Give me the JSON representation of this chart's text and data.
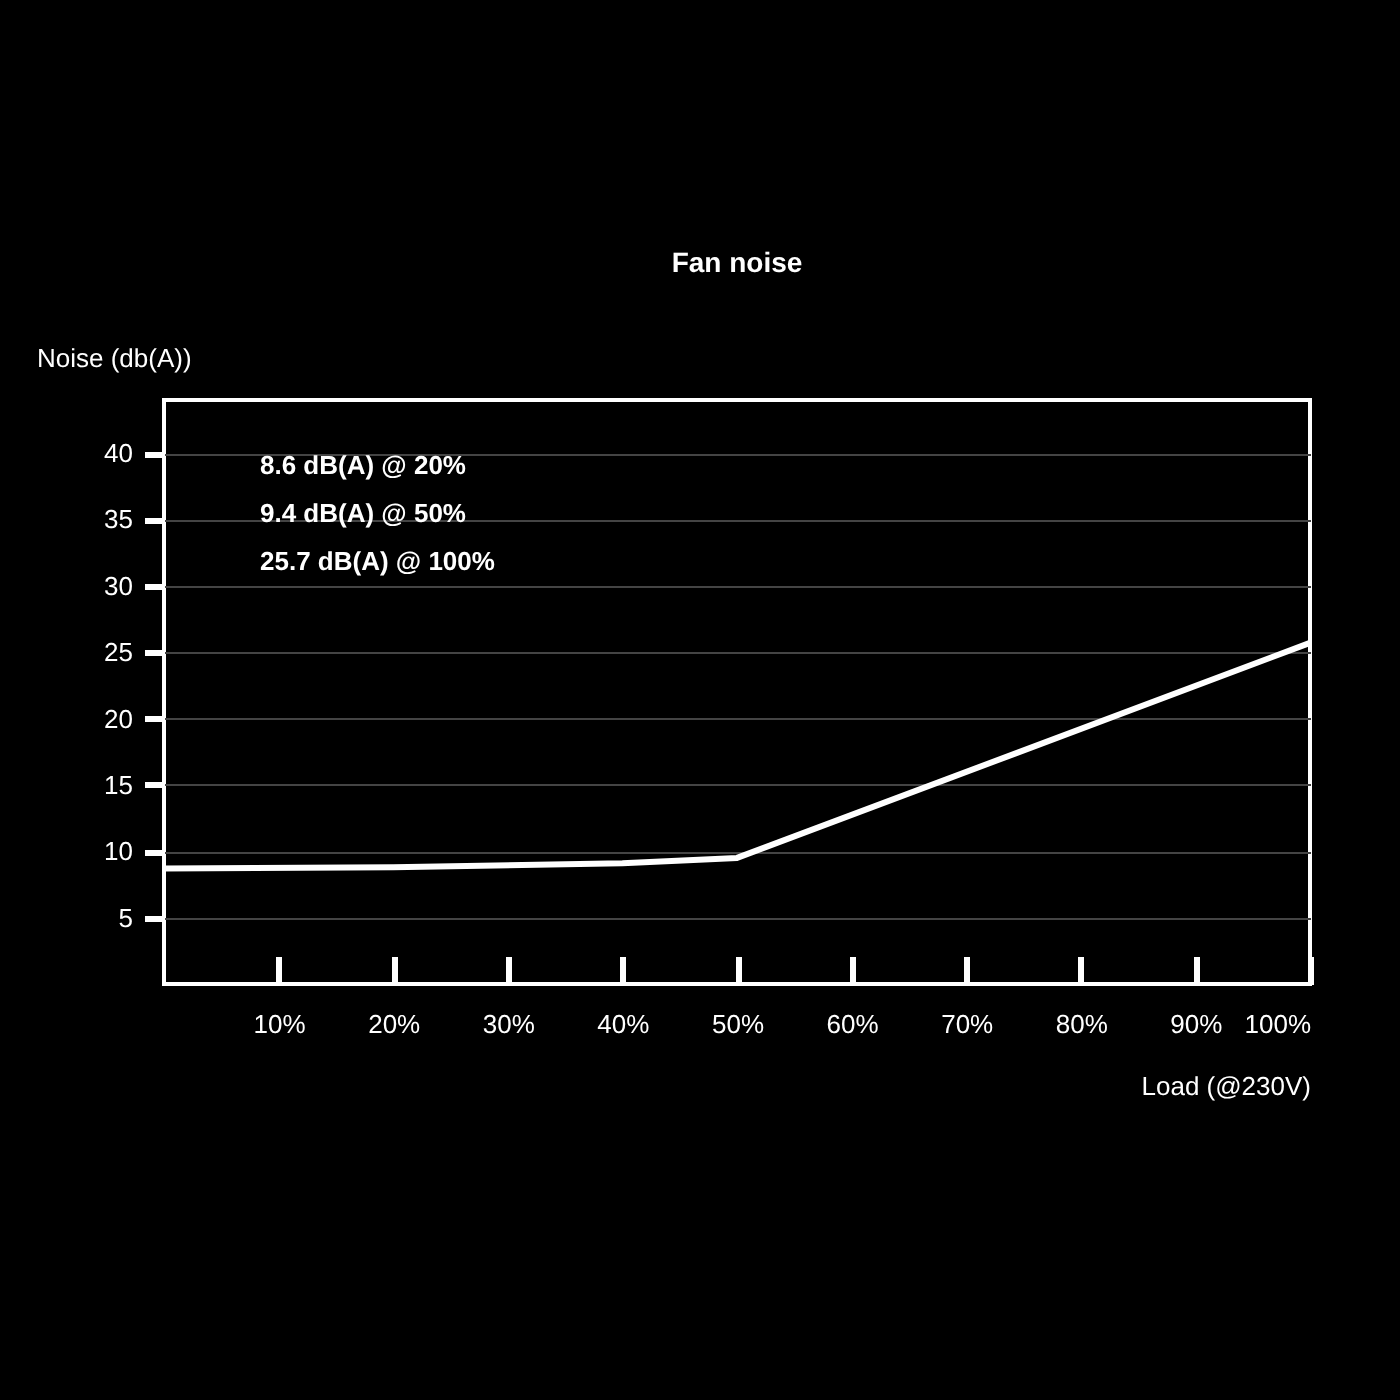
{
  "chart_data": {
    "type": "line",
    "title": "Fan noise",
    "xlabel": "Load (@230V)",
    "ylabel": "Noise (db(A))",
    "x": [
      0,
      20,
      40,
      50,
      100
    ],
    "series": [
      {
        "color": "#ffffff",
        "values": [
          8.7,
          8.8,
          9.1,
          9.5,
          25.7
        ]
      }
    ],
    "xlim": [
      0,
      100
    ],
    "xticks": [
      {
        "value": 10,
        "label": "10%"
      },
      {
        "value": 20,
        "label": "20%"
      },
      {
        "value": 30,
        "label": "30%"
      },
      {
        "value": 40,
        "label": "40%"
      },
      {
        "value": 50,
        "label": "50%"
      },
      {
        "value": 60,
        "label": "60%"
      },
      {
        "value": 70,
        "label": "70%"
      },
      {
        "value": 80,
        "label": "80%"
      },
      {
        "value": 90,
        "label": "90%"
      },
      {
        "value": 100,
        "label": "100%"
      }
    ],
    "ylim": [
      0,
      44
    ],
    "yticks": [
      5,
      10,
      15,
      20,
      25,
      30,
      35,
      40
    ],
    "annotations": [
      "8.6 dB(A) @ 20%",
      "9.4 dB(A) @ 50%",
      "25.7 dB(A) @ 100%"
    ],
    "grid": "y",
    "marker": "none",
    "line_style": "solid"
  }
}
